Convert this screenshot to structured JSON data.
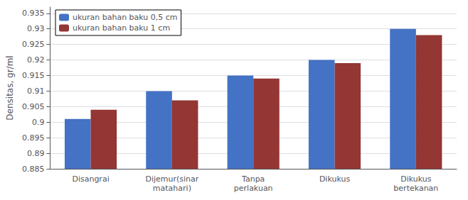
{
  "chart_data": {
    "type": "bar",
    "categories": [
      "Disangrai",
      "Dijemur(sinar\nmatahari)",
      "Tanpa\nperlakuan",
      "Dikukus",
      "Dikukus\nbertekanan"
    ],
    "series": [
      {
        "name": "ukuran bahan baku 0,5 cm",
        "color": "#4472C4",
        "values": [
          0.901,
          0.91,
          0.915,
          0.92,
          0.93
        ]
      },
      {
        "name": "ukuran bahan baku 1 cm",
        "color": "#943634",
        "values": [
          0.904,
          0.907,
          0.914,
          0.919,
          0.928
        ]
      }
    ],
    "ylabel": "Densitas, gr/ml",
    "ylim": [
      0.885,
      0.937
    ],
    "yticks": [
      0.885,
      0.89,
      0.895,
      0.9,
      0.905,
      0.91,
      0.915,
      0.92,
      0.925,
      0.93,
      0.935
    ],
    "grid": true,
    "legend": "upper left"
  }
}
